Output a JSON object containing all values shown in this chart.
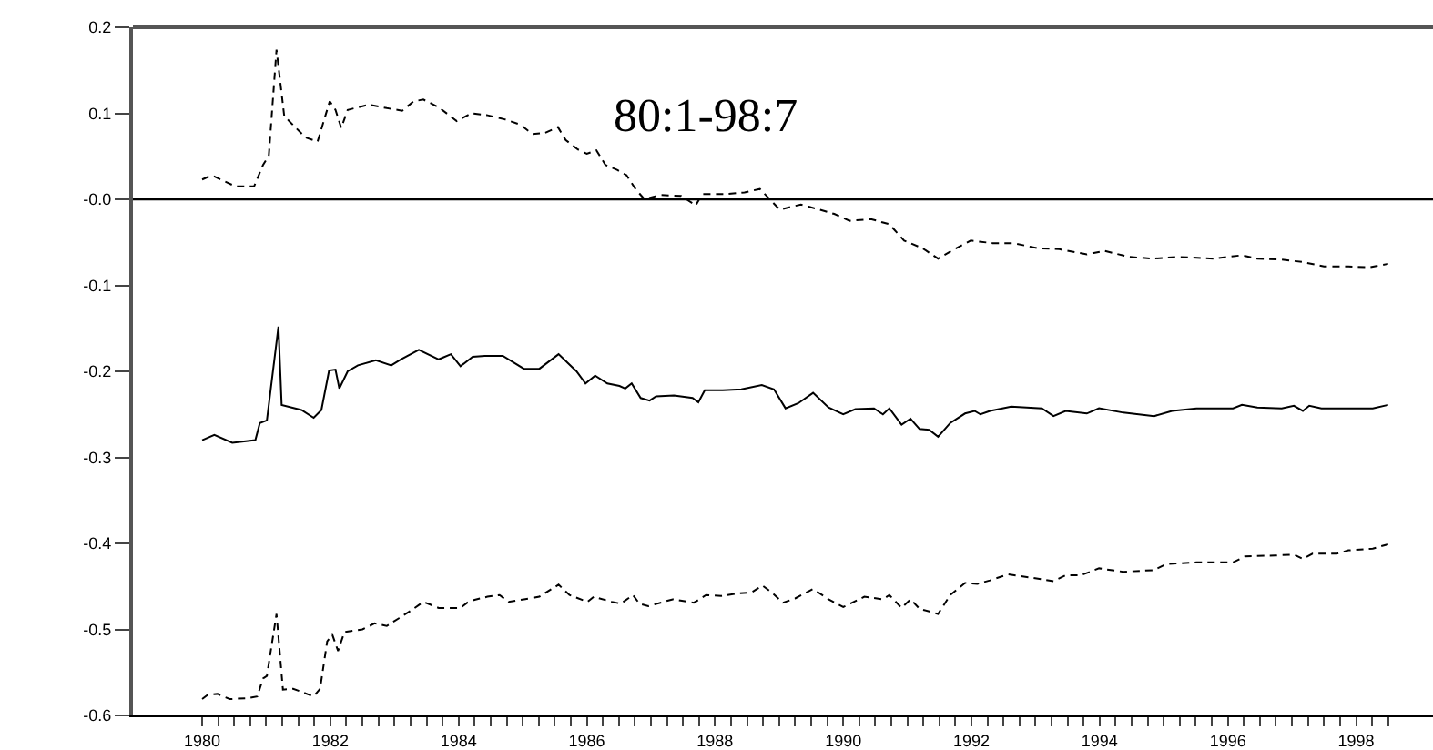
{
  "chart_data": {
    "type": "line",
    "annotations": [
      "80:1-98:7"
    ],
    "xlim": [
      1978.92,
      1999.2
    ],
    "xticks": [
      1980,
      {
        "value": 1980.25,
        "label": null
      },
      {
        "value": 1980.5,
        "label": null
      },
      {
        "value": 1980.75,
        "label": null
      },
      {
        "value": 1981,
        "label": null
      },
      {
        "value": 1981.25,
        "label": null
      },
      {
        "value": 1981.5,
        "label": null
      },
      {
        "value": 1981.75,
        "label": null
      },
      1982,
      {
        "value": 1982.25,
        "label": null
      },
      {
        "value": 1982.5,
        "label": null
      },
      {
        "value": 1982.75,
        "label": null
      },
      {
        "value": 1983,
        "label": null
      },
      {
        "value": 1983.25,
        "label": null
      },
      {
        "value": 1983.5,
        "label": null
      },
      {
        "value": 1983.75,
        "label": null
      },
      1984,
      {
        "value": 1984.25,
        "label": null
      },
      {
        "value": 1984.5,
        "label": null
      },
      {
        "value": 1984.75,
        "label": null
      },
      {
        "value": 1985,
        "label": null
      },
      {
        "value": 1985.25,
        "label": null
      },
      {
        "value": 1985.5,
        "label": null
      },
      {
        "value": 1985.75,
        "label": null
      },
      1986,
      {
        "value": 1986.25,
        "label": null
      },
      {
        "value": 1986.5,
        "label": null
      },
      {
        "value": 1986.75,
        "label": null
      },
      {
        "value": 1987,
        "label": null
      },
      {
        "value": 1987.25,
        "label": null
      },
      {
        "value": 1987.5,
        "label": null
      },
      {
        "value": 1987.75,
        "label": null
      },
      1988,
      {
        "value": 1988.25,
        "label": null
      },
      {
        "value": 1988.5,
        "label": null
      },
      {
        "value": 1988.75,
        "label": null
      },
      {
        "value": 1989,
        "label": null
      },
      {
        "value": 1989.25,
        "label": null
      },
      {
        "value": 1989.5,
        "label": null
      },
      {
        "value": 1989.75,
        "label": null
      },
      1990,
      {
        "value": 1990.25,
        "label": null
      },
      {
        "value": 1990.5,
        "label": null
      },
      {
        "value": 1990.75,
        "label": null
      },
      {
        "value": 1991,
        "label": null
      },
      {
        "value": 1991.25,
        "label": null
      },
      {
        "value": 1991.5,
        "label": null
      },
      {
        "value": 1991.75,
        "label": null
      },
      1992,
      {
        "value": 1992.25,
        "label": null
      },
      {
        "value": 1992.5,
        "label": null
      },
      {
        "value": 1992.75,
        "label": null
      },
      {
        "value": 1993,
        "label": null
      },
      {
        "value": 1993.25,
        "label": null
      },
      {
        "value": 1993.5,
        "label": null
      },
      {
        "value": 1993.75,
        "label": null
      },
      1994,
      {
        "value": 1994.25,
        "label": null
      },
      {
        "value": 1994.5,
        "label": null
      },
      {
        "value": 1994.75,
        "label": null
      },
      {
        "value": 1995,
        "label": null
      },
      {
        "value": 1995.25,
        "label": null
      },
      {
        "value": 1995.5,
        "label": null
      },
      {
        "value": 1995.75,
        "label": null
      },
      1996,
      {
        "value": 1996.25,
        "label": null
      },
      {
        "value": 1996.5,
        "label": null
      },
      {
        "value": 1996.75,
        "label": null
      },
      {
        "value": 1997,
        "label": null
      },
      {
        "value": 1997.25,
        "label": null
      },
      {
        "value": 1997.5,
        "label": null
      },
      {
        "value": 1997.75,
        "label": null
      },
      1998,
      {
        "value": 1998.25,
        "label": null
      },
      {
        "value": 1998.5,
        "label": null
      }
    ],
    "ylim": [
      -0.6,
      0.2
    ],
    "yticks": [
      0.2,
      0.1,
      {
        "value": 0,
        "label": "-0.0"
      },
      -0.1,
      -0.2,
      -0.3,
      -0.4,
      -0.5,
      -0.6
    ],
    "ref_lines": [
      {
        "axis": "y",
        "value": 0,
        "label": null,
        "color": "#000000",
        "line_style": "solid"
      }
    ],
    "series": [
      {
        "color": "#000000",
        "line_style": "dashed",
        "x": [
          1980.0,
          1980.15,
          1980.29,
          1980.52,
          1980.81,
          1980.95,
          1981.04,
          1981.16,
          1981.28,
          1981.37,
          1981.61,
          1981.8,
          1981.99,
          1982.08,
          1982.17,
          1982.27,
          1982.6,
          1982.88,
          1983.12,
          1983.3,
          1983.45,
          1983.69,
          1983.97,
          1984.2,
          1984.44,
          1984.72,
          1984.96,
          1985.15,
          1985.34,
          1985.55,
          1985.67,
          1985.86,
          1986.0,
          1986.15,
          1986.29,
          1986.48,
          1986.62,
          1986.76,
          1986.9,
          1987.14,
          1987.47,
          1987.7,
          1987.8,
          1988.18,
          1988.46,
          1988.7,
          1989.01,
          1989.34,
          1989.63,
          1989.86,
          1990.1,
          1990.43,
          1990.72,
          1990.95,
          1991.24,
          1991.48,
          1991.76,
          1991.99,
          1992.33,
          1992.66,
          1993.04,
          1993.37,
          1993.8,
          1994.08,
          1994.46,
          1994.84,
          1995.22,
          1995.79,
          1996.22,
          1996.46,
          1996.84,
          1997.17,
          1997.5,
          1997.88,
          1998.21,
          1998.5
        ],
        "values": [
          0.023,
          0.028,
          0.023,
          0.015,
          0.015,
          0.04,
          0.051,
          0.174,
          0.097,
          0.09,
          0.072,
          0.067,
          0.114,
          0.104,
          0.083,
          0.104,
          0.11,
          0.106,
          0.103,
          0.114,
          0.116,
          0.107,
          0.091,
          0.1,
          0.098,
          0.093,
          0.087,
          0.076,
          0.077,
          0.084,
          0.069,
          0.058,
          0.053,
          0.057,
          0.04,
          0.034,
          0.028,
          0.012,
          0.0,
          0.005,
          0.004,
          -0.007,
          0.006,
          0.006,
          0.008,
          0.012,
          -0.012,
          -0.006,
          -0.012,
          -0.017,
          -0.025,
          -0.023,
          -0.029,
          -0.048,
          -0.057,
          -0.069,
          -0.057,
          -0.048,
          -0.051,
          -0.051,
          -0.057,
          -0.058,
          -0.064,
          -0.06,
          -0.067,
          -0.069,
          -0.067,
          -0.069,
          -0.065,
          -0.069,
          -0.07,
          -0.073,
          -0.078,
          -0.078,
          -0.079,
          -0.075
        ]
      },
      {
        "color": "#000000",
        "line_style": "solid",
        "x": [
          1980.0,
          1980.19,
          1980.47,
          1980.83,
          1980.9,
          1981.01,
          1981.19,
          1981.24,
          1981.55,
          1981.74,
          1981.86,
          1981.98,
          1982.08,
          1982.14,
          1982.27,
          1982.43,
          1982.71,
          1982.95,
          1983.1,
          1983.38,
          1983.69,
          1983.88,
          1984.03,
          1984.22,
          1984.41,
          1984.69,
          1985.02,
          1985.26,
          1985.56,
          1985.84,
          1985.98,
          1986.13,
          1986.32,
          1986.51,
          1986.6,
          1986.7,
          1986.84,
          1986.98,
          1987.08,
          1987.36,
          1987.65,
          1987.74,
          1987.84,
          1988.12,
          1988.41,
          1988.73,
          1988.92,
          1989.1,
          1989.3,
          1989.53,
          1989.77,
          1990.0,
          1990.19,
          1990.48,
          1990.62,
          1990.72,
          1990.91,
          1991.05,
          1991.19,
          1991.34,
          1991.48,
          1991.67,
          1991.9,
          1992.05,
          1992.14,
          1992.29,
          1992.62,
          1993.1,
          1993.28,
          1993.47,
          1993.8,
          1993.99,
          1994.37,
          1994.85,
          1995.13,
          1995.51,
          1996.08,
          1996.22,
          1996.46,
          1996.84,
          1997.03,
          1997.17,
          1997.27,
          1997.46,
          1997.98,
          1998.26,
          1998.5
        ],
        "values": [
          -0.28,
          -0.274,
          -0.283,
          -0.28,
          -0.26,
          -0.257,
          -0.148,
          -0.239,
          -0.245,
          -0.254,
          -0.245,
          -0.199,
          -0.198,
          -0.22,
          -0.2,
          -0.193,
          -0.187,
          -0.193,
          -0.186,
          -0.175,
          -0.186,
          -0.18,
          -0.194,
          -0.183,
          -0.182,
          -0.182,
          -0.197,
          -0.197,
          -0.18,
          -0.2,
          -0.214,
          -0.205,
          -0.214,
          -0.217,
          -0.22,
          -0.214,
          -0.231,
          -0.234,
          -0.229,
          -0.228,
          -0.231,
          -0.236,
          -0.222,
          -0.222,
          -0.221,
          -0.216,
          -0.221,
          -0.243,
          -0.237,
          -0.225,
          -0.242,
          -0.25,
          -0.244,
          -0.243,
          -0.25,
          -0.243,
          -0.262,
          -0.255,
          -0.267,
          -0.268,
          -0.276,
          -0.26,
          -0.249,
          -0.246,
          -0.25,
          -0.246,
          -0.241,
          -0.243,
          -0.252,
          -0.246,
          -0.249,
          -0.243,
          -0.248,
          -0.252,
          -0.246,
          -0.243,
          -0.243,
          -0.239,
          -0.242,
          -0.243,
          -0.24,
          -0.246,
          -0.24,
          -0.243,
          -0.243,
          -0.243,
          -0.239
        ]
      },
      {
        "color": "#000000",
        "line_style": "dashed",
        "x": [
          1980.0,
          1980.09,
          1980.24,
          1980.43,
          1980.71,
          1980.86,
          1980.95,
          1981.01,
          1981.16,
          1981.26,
          1981.42,
          1981.74,
          1981.84,
          1981.95,
          1982.03,
          1982.12,
          1982.22,
          1982.5,
          1982.69,
          1982.88,
          1983.07,
          1983.26,
          1983.45,
          1983.69,
          1984.03,
          1984.17,
          1984.45,
          1984.64,
          1984.78,
          1985.02,
          1985.26,
          1985.56,
          1985.73,
          1986.01,
          1986.11,
          1986.39,
          1986.53,
          1986.72,
          1986.82,
          1986.96,
          1987.34,
          1987.67,
          1987.86,
          1988.1,
          1988.38,
          1988.57,
          1988.74,
          1988.9,
          1989.06,
          1989.25,
          1989.53,
          1989.77,
          1990.0,
          1990.33,
          1990.62,
          1990.72,
          1990.91,
          1991.05,
          1991.19,
          1991.48,
          1991.67,
          1991.9,
          1992.09,
          1992.29,
          1992.57,
          1992.95,
          1993.28,
          1993.47,
          1993.71,
          1993.99,
          1994.37,
          1994.85,
          1995.04,
          1995.51,
          1996.08,
          1996.27,
          1996.74,
          1997.03,
          1997.17,
          1997.32,
          1997.7,
          1997.88,
          1998.26,
          1998.5
        ],
        "values": [
          -0.581,
          -0.576,
          -0.575,
          -0.581,
          -0.58,
          -0.578,
          -0.557,
          -0.554,
          -0.482,
          -0.57,
          -0.569,
          -0.578,
          -0.569,
          -0.514,
          -0.506,
          -0.525,
          -0.503,
          -0.5,
          -0.493,
          -0.496,
          -0.487,
          -0.478,
          -0.468,
          -0.475,
          -0.475,
          -0.467,
          -0.462,
          -0.46,
          -0.468,
          -0.465,
          -0.462,
          -0.448,
          -0.46,
          -0.468,
          -0.462,
          -0.468,
          -0.47,
          -0.46,
          -0.47,
          -0.473,
          -0.465,
          -0.469,
          -0.46,
          -0.461,
          -0.458,
          -0.457,
          -0.449,
          -0.458,
          -0.469,
          -0.464,
          -0.453,
          -0.465,
          -0.474,
          -0.462,
          -0.465,
          -0.46,
          -0.475,
          -0.465,
          -0.476,
          -0.482,
          -0.46,
          -0.446,
          -0.447,
          -0.443,
          -0.436,
          -0.44,
          -0.444,
          -0.437,
          -0.437,
          -0.429,
          -0.433,
          -0.431,
          -0.424,
          -0.422,
          -0.422,
          -0.415,
          -0.414,
          -0.413,
          -0.418,
          -0.412,
          -0.412,
          -0.408,
          -0.406,
          -0.401
        ]
      }
    ]
  }
}
